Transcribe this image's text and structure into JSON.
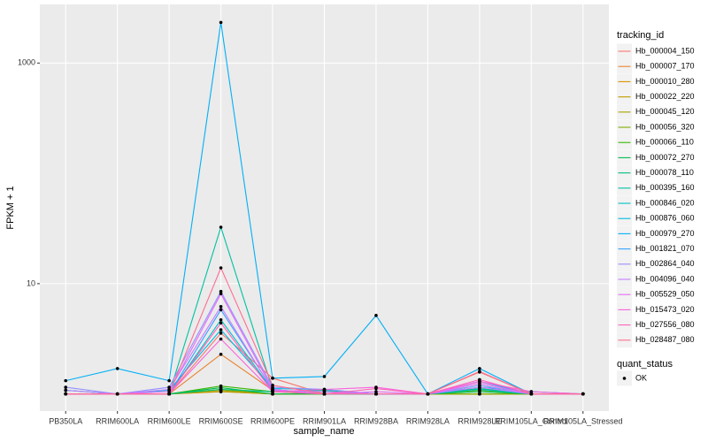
{
  "chart_data": {
    "type": "line",
    "x_label": "sample_name",
    "y_label": "FPKM + 1",
    "log_y": true,
    "grid": true,
    "legend": "right",
    "legend_title": "tracking_id",
    "shape_legend": {
      "title": "quant_status",
      "labels": [
        "OK"
      ]
    },
    "point_color": "#000000",
    "panel_color": "#EBEBEB",
    "categories": [
      "PB350LA",
      "RRIM600LA",
      "RRIM600LE",
      "RRIM600SE",
      "RRIM600PE",
      "RRIM901LA",
      "RRIM928BA",
      "RRIM928LA",
      "RRIM928LE",
      "RRIM105LA_Control",
      "RRIM105LA_Stressed"
    ],
    "ylim": [
      0.7,
      3400
    ],
    "yticks": [
      10,
      1000
    ],
    "series": [
      {
        "name": "Hb_000004_150",
        "color": "#F8766D",
        "values": [
          1,
          1,
          1,
          3.56,
          1.39,
          1,
          1,
          1,
          1.58,
          1,
          1
        ]
      },
      {
        "name": "Hb_000007_170",
        "color": "#EA8331",
        "values": [
          1,
          1,
          1,
          2.29,
          1.08,
          1,
          1,
          1,
          1.3,
          1,
          1
        ]
      },
      {
        "name": "Hb_000010_280",
        "color": "#D89000",
        "values": [
          1,
          1,
          1,
          1.05,
          1,
          1,
          1,
          1,
          1,
          1,
          1
        ]
      },
      {
        "name": "Hb_000022_220",
        "color": "#C09B00",
        "values": [
          1,
          1,
          1,
          1.05,
          1,
          1,
          1,
          1,
          1,
          1,
          1
        ]
      },
      {
        "name": "Hb_000045_120",
        "color": "#A3A500",
        "values": [
          1,
          1,
          1,
          1.08,
          1,
          1,
          1,
          1,
          1,
          1,
          1
        ]
      },
      {
        "name": "Hb_000056_320",
        "color": "#7CAE00",
        "values": [
          1,
          1,
          1,
          1.1,
          1,
          1,
          1,
          1,
          1,
          1,
          1
        ]
      },
      {
        "name": "Hb_000066_110",
        "color": "#39B600",
        "values": [
          1,
          1,
          1,
          1.18,
          1.05,
          1,
          1,
          1,
          1.08,
          1,
          1
        ]
      },
      {
        "name": "Hb_000072_270",
        "color": "#00BB4E",
        "values": [
          1,
          1,
          1,
          1.14,
          1,
          1,
          1,
          1,
          1.05,
          1,
          1
        ]
      },
      {
        "name": "Hb_000078_110",
        "color": "#00BF7D",
        "values": [
          1.08,
          1,
          1,
          1.1,
          1.05,
          1.08,
          1,
          1,
          1.12,
          1,
          1
        ]
      },
      {
        "name": "Hb_000395_160",
        "color": "#00C1A3",
        "values": [
          1,
          1,
          1,
          32.5,
          1.1,
          1,
          1,
          1,
          1.2,
          1,
          1
        ]
      },
      {
        "name": "Hb_000846_020",
        "color": "#00BFC4",
        "values": [
          1,
          1,
          1,
          4.7,
          1.08,
          1.05,
          1,
          1,
          1.1,
          1,
          1
        ]
      },
      {
        "name": "Hb_000876_060",
        "color": "#00BAE0",
        "values": [
          1.08,
          1,
          1.08,
          3.82,
          1.12,
          1.1,
          1,
          1,
          1.15,
          1.05,
          1
        ]
      },
      {
        "name": "Hb_000979_270",
        "color": "#00B0F6",
        "values": [
          1.32,
          1.7,
          1.32,
          2335,
          1.39,
          1.44,
          5.15,
          1,
          1.7,
          1,
          1
        ]
      },
      {
        "name": "Hb_001821_070",
        "color": "#35A2FF",
        "values": [
          1,
          1,
          1,
          5.8,
          1.1,
          1,
          1,
          1,
          1.3,
          1,
          1
        ]
      },
      {
        "name": "Hb_002864_040",
        "color": "#9590FF",
        "values": [
          1.15,
          1,
          1.15,
          8.5,
          1.15,
          1.1,
          1,
          1,
          1.2,
          1,
          1
        ]
      },
      {
        "name": "Hb_004096_040",
        "color": "#C77CFF",
        "values": [
          1.08,
          1,
          1.1,
          6.2,
          1.08,
          1.05,
          1,
          1,
          1.15,
          1,
          1
        ]
      },
      {
        "name": "Hb_005529_050",
        "color": "#E76BF3",
        "values": [
          1,
          1,
          1.05,
          8.1,
          1.1,
          1,
          1.05,
          1,
          1.25,
          1,
          1
        ]
      },
      {
        "name": "Hb_015473_020",
        "color": "#FA62DB",
        "values": [
          1,
          1,
          1,
          3.15,
          1.05,
          1.1,
          1.15,
          1,
          1.3,
          1.05,
          1
        ]
      },
      {
        "name": "Hb_027556_080",
        "color": "#FF62BC",
        "values": [
          1,
          1,
          1,
          4.4,
          1.05,
          1,
          1.12,
          1,
          1.35,
          1,
          1
        ]
      },
      {
        "name": "Hb_028487_080",
        "color": "#FF6C91",
        "values": [
          1,
          1,
          1,
          13.9,
          1.2,
          1,
          1,
          1,
          1.6,
          1,
          1
        ]
      }
    ]
  }
}
